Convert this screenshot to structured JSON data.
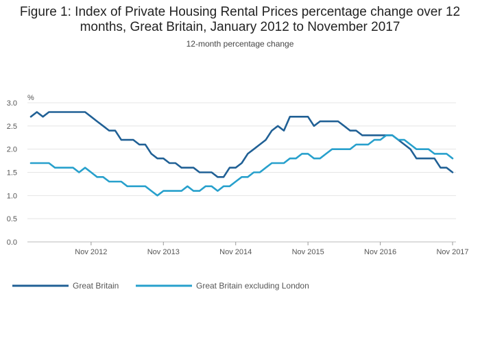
{
  "chart_data": {
    "type": "line",
    "title": "Figure 1: Index of Private Housing Rental Prices percentage change over 12 months, Great Britain, January 2012 to November 2017",
    "subtitle": "12-month percentage change",
    "ylabel": "%",
    "ylim": [
      0,
      3
    ],
    "yticks": [
      "0.0",
      "0.5",
      "1.0",
      "1.5",
      "2.0",
      "2.5",
      "3.0"
    ],
    "xtick_labels": [
      "Nov 2012",
      "Nov 2013",
      "Nov 2014",
      "Nov 2015",
      "Nov 2016",
      "Nov 2017"
    ],
    "x_start": "Jan 2012",
    "x_end": "Nov 2017",
    "grid": true,
    "legend_position": "bottom-left",
    "series": [
      {
        "name": "Great Britain",
        "color": "#206095",
        "values": [
          2.7,
          2.8,
          2.7,
          2.8,
          2.8,
          2.8,
          2.8,
          2.8,
          2.8,
          2.8,
          2.7,
          2.6,
          2.5,
          2.4,
          2.4,
          2.2,
          2.2,
          2.2,
          2.1,
          2.1,
          1.9,
          1.8,
          1.8,
          1.7,
          1.7,
          1.6,
          1.6,
          1.6,
          1.5,
          1.5,
          1.5,
          1.4,
          1.4,
          1.6,
          1.6,
          1.7,
          1.9,
          2.0,
          2.1,
          2.2,
          2.4,
          2.5,
          2.4,
          2.7,
          2.7,
          2.7,
          2.7,
          2.5,
          2.6,
          2.6,
          2.6,
          2.6,
          2.5,
          2.4,
          2.4,
          2.3,
          2.3,
          2.3,
          2.3,
          2.3,
          2.3,
          2.2,
          2.1,
          2.0,
          1.8,
          1.8,
          1.8,
          1.8,
          1.6,
          1.6,
          1.5
        ]
      },
      {
        "name": "Great Britain excluding London",
        "color": "#27a0cc",
        "values": [
          1.7,
          1.7,
          1.7,
          1.7,
          1.6,
          1.6,
          1.6,
          1.6,
          1.5,
          1.6,
          1.5,
          1.4,
          1.4,
          1.3,
          1.3,
          1.3,
          1.2,
          1.2,
          1.2,
          1.2,
          1.1,
          1.0,
          1.1,
          1.1,
          1.1,
          1.1,
          1.2,
          1.1,
          1.1,
          1.2,
          1.2,
          1.1,
          1.2,
          1.2,
          1.3,
          1.4,
          1.4,
          1.5,
          1.5,
          1.6,
          1.7,
          1.7,
          1.7,
          1.8,
          1.8,
          1.9,
          1.9,
          1.8,
          1.8,
          1.9,
          2.0,
          2.0,
          2.0,
          2.0,
          2.1,
          2.1,
          2.1,
          2.2,
          2.2,
          2.3,
          2.3,
          2.2,
          2.2,
          2.1,
          2.0,
          2.0,
          2.0,
          1.9,
          1.9,
          1.9,
          1.8
        ]
      }
    ]
  }
}
